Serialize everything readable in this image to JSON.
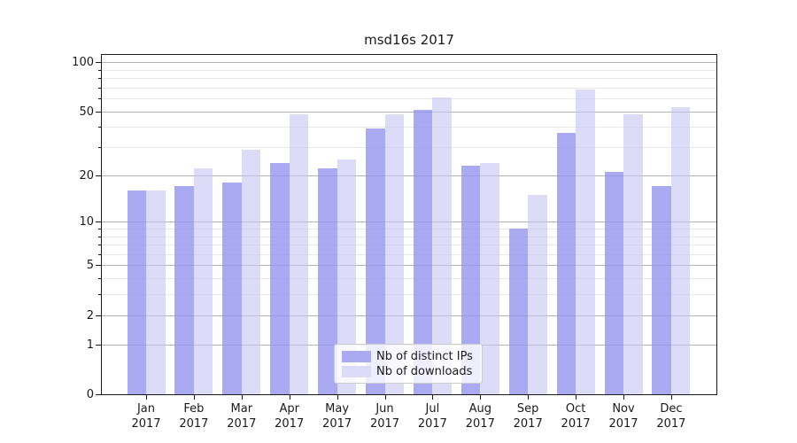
{
  "chart_data": {
    "type": "bar",
    "title": "msd16s 2017",
    "categories": [
      "Jan",
      "Feb",
      "Mar",
      "Apr",
      "May",
      "Jun",
      "Jul",
      "Aug",
      "Sep",
      "Oct",
      "Nov",
      "Dec"
    ],
    "year_label": "2017",
    "series": [
      {
        "name": "Nb of distinct IPs",
        "color": "#aaaaf2",
        "values": [
          16,
          17,
          18,
          24,
          22,
          39,
          51,
          23,
          9,
          37,
          21,
          17
        ]
      },
      {
        "name": "Nb of downloads",
        "color": "#dcdcf8",
        "values": [
          16,
          22,
          29,
          48,
          25,
          48,
          61,
          24,
          15,
          68,
          48,
          53
        ]
      }
    ],
    "xlabel": "",
    "ylabel": "",
    "yscale": "log1p",
    "ylim": [
      0,
      113
    ],
    "yticks_major": [
      0,
      1,
      2,
      5,
      10,
      20,
      50,
      100
    ],
    "yticks_minor": [
      3,
      4,
      6,
      7,
      8,
      9,
      30,
      40,
      60,
      70,
      80,
      90
    ],
    "grid": {
      "horizontal": true,
      "vertical": false,
      "major_color": "#b3b3b3",
      "minor_color": "#e9e9e9"
    },
    "legend_position": "inside lower center-right"
  }
}
